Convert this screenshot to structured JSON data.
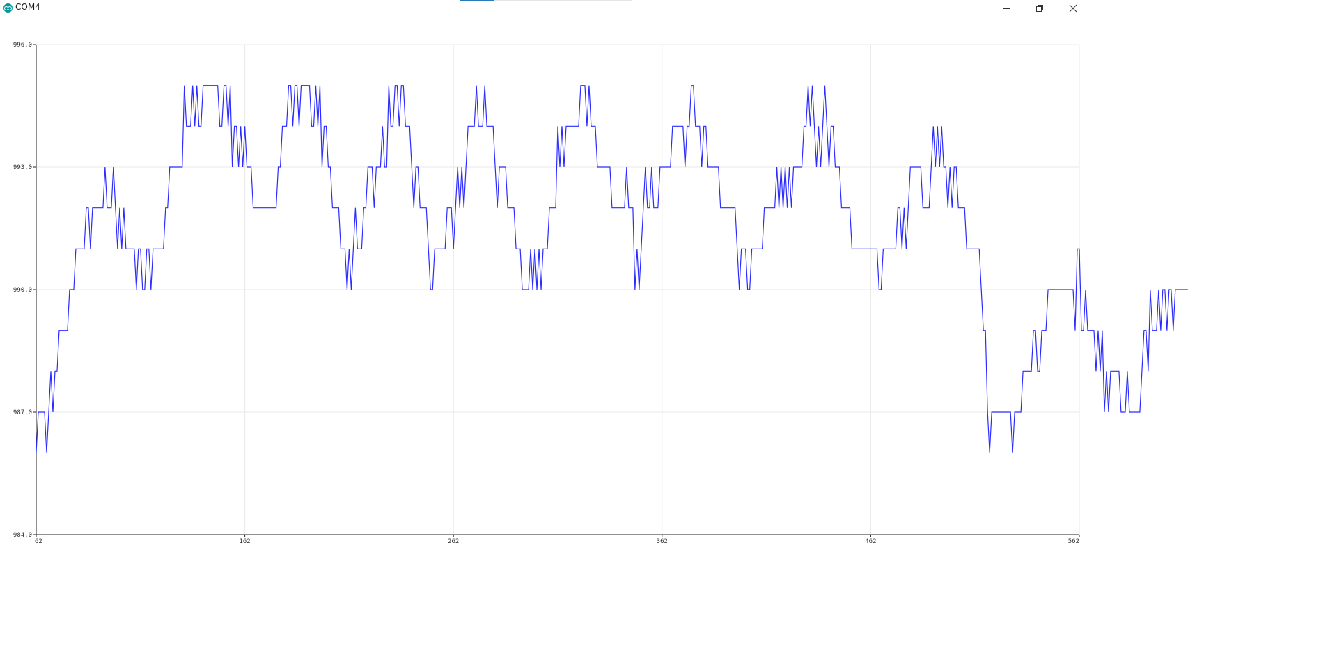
{
  "window": {
    "title": "COM4",
    "controls": [
      "minimize-icon",
      "restore-icon",
      "close-icon"
    ]
  },
  "colors": {
    "series": "#2b2bff",
    "grid": "#e8e8e8",
    "axis": "#222222",
    "app_icon": "#00979d"
  },
  "chart_data": {
    "type": "line",
    "xlim": [
      62,
      562
    ],
    "ylim": [
      984.0,
      996.0
    ],
    "x_ticks": [
      "62",
      "162",
      "262",
      "362",
      "462",
      "562"
    ],
    "y_ticks": [
      "984.0",
      "987.0",
      "990.0",
      "993.0",
      "996.0"
    ],
    "grid": true,
    "x_start": 62,
    "series": [
      {
        "values": [
          986,
          987,
          987,
          987,
          987,
          986,
          987,
          988,
          987,
          988,
          988,
          989,
          989,
          989,
          989,
          989,
          990,
          990,
          990,
          991,
          991,
          991,
          991,
          991,
          992,
          992,
          991,
          992,
          992,
          992,
          992,
          992,
          992,
          993,
          992,
          992,
          992,
          993,
          992,
          991,
          992,
          991,
          992,
          991,
          991,
          991,
          991,
          991,
          990,
          991,
          991,
          990,
          990,
          991,
          991,
          990,
          991,
          991,
          991,
          991,
          991,
          991,
          992,
          992,
          993,
          993,
          993,
          993,
          993,
          993,
          993,
          995,
          994,
          994,
          994,
          995,
          994,
          995,
          994,
          994,
          995,
          995,
          995,
          995,
          995,
          995,
          995,
          995,
          994,
          994,
          995,
          995,
          994,
          995,
          993,
          994,
          994,
          993,
          994,
          993,
          994,
          993,
          993,
          993,
          992,
          992,
          992,
          992,
          992,
          992,
          992,
          992,
          992,
          992,
          992,
          992,
          993,
          993,
          994,
          994,
          994,
          995,
          995,
          994,
          995,
          995,
          994,
          995,
          995,
          995,
          995,
          995,
          994,
          994,
          995,
          994,
          995,
          993,
          994,
          994,
          993,
          993,
          992,
          992,
          992,
          992,
          991,
          991,
          991,
          990,
          991,
          990,
          991,
          992,
          991,
          991,
          991,
          992,
          992,
          993,
          993,
          993,
          992,
          993,
          993,
          993,
          994,
          993,
          993,
          995,
          994,
          994,
          995,
          995,
          994,
          995,
          995,
          994,
          994,
          994,
          993,
          992,
          993,
          993,
          992,
          992,
          992,
          992,
          991,
          990,
          990,
          991,
          991,
          991,
          991,
          991,
          991,
          992,
          992,
          992,
          991,
          992,
          993,
          992,
          993,
          992,
          993,
          994,
          994,
          994,
          994,
          995,
          994,
          994,
          994,
          995,
          994,
          994,
          994,
          994,
          993,
          992,
          993,
          993,
          993,
          993,
          992,
          992,
          992,
          992,
          991,
          991,
          991,
          990,
          990,
          990,
          990,
          991,
          990,
          991,
          990,
          991,
          990,
          991,
          991,
          991,
          992,
          992,
          992,
          992,
          994,
          993,
          994,
          993,
          994,
          994,
          994,
          994,
          994,
          994,
          994,
          995,
          995,
          995,
          994,
          995,
          994,
          994,
          994,
          993,
          993,
          993,
          993,
          993,
          993,
          993,
          992,
          992,
          992,
          992,
          992,
          992,
          992,
          993,
          992,
          992,
          992,
          990,
          991,
          990,
          991,
          992,
          993,
          992,
          992,
          993,
          992,
          992,
          992,
          993,
          993,
          993,
          993,
          993,
          993,
          994,
          994,
          994,
          994,
          994,
          994,
          993,
          994,
          994,
          995,
          995,
          994,
          994,
          994,
          993,
          994,
          994,
          993,
          993,
          993,
          993,
          993,
          993,
          992,
          992,
          992,
          992,
          992,
          992,
          992,
          992,
          991,
          990,
          991,
          991,
          991,
          990,
          990,
          991,
          991,
          991,
          991,
          991,
          991,
          992,
          992,
          992,
          992,
          992,
          992,
          993,
          992,
          993,
          992,
          993,
          992,
          993,
          992,
          993,
          993,
          993,
          993,
          993,
          994,
          994,
          995,
          994,
          995,
          994,
          993,
          994,
          993,
          994,
          995,
          994,
          993,
          994,
          994,
          993,
          993,
          993,
          992,
          992,
          992,
          992,
          992,
          991,
          991,
          991,
          991,
          991,
          991,
          991,
          991,
          991,
          991,
          991,
          991,
          991,
          990,
          990,
          991,
          991,
          991,
          991,
          991,
          991,
          991,
          992,
          992,
          991,
          992,
          991,
          992,
          993,
          993,
          993,
          993,
          993,
          993,
          992,
          992,
          992,
          992,
          993,
          994,
          993,
          994,
          993,
          994,
          993,
          993,
          992,
          993,
          992,
          993,
          993,
          992,
          992,
          992,
          992,
          991,
          991,
          991,
          991,
          991,
          991,
          991,
          990,
          989,
          989,
          987,
          986,
          987,
          987,
          987,
          987,
          987,
          987,
          987,
          987,
          987,
          987,
          986,
          987,
          987,
          987,
          987,
          988,
          988,
          988,
          988,
          988,
          989,
          989,
          988,
          988,
          989,
          989,
          989,
          990,
          990,
          990,
          990,
          990,
          990,
          990,
          990,
          990,
          990,
          990,
          990,
          990,
          989,
          991,
          991,
          989,
          989,
          990,
          989,
          989,
          989,
          989,
          988,
          989,
          988,
          989,
          987,
          988,
          987,
          988,
          988,
          988,
          988,
          988,
          987,
          987,
          987,
          988,
          987,
          987,
          987,
          987,
          987,
          987,
          988,
          989,
          989,
          988,
          990,
          989,
          989,
          989,
          990,
          989,
          990,
          990,
          989,
          990,
          990,
          989,
          990,
          990,
          990,
          990,
          990,
          990,
          990
        ]
      }
    ]
  }
}
